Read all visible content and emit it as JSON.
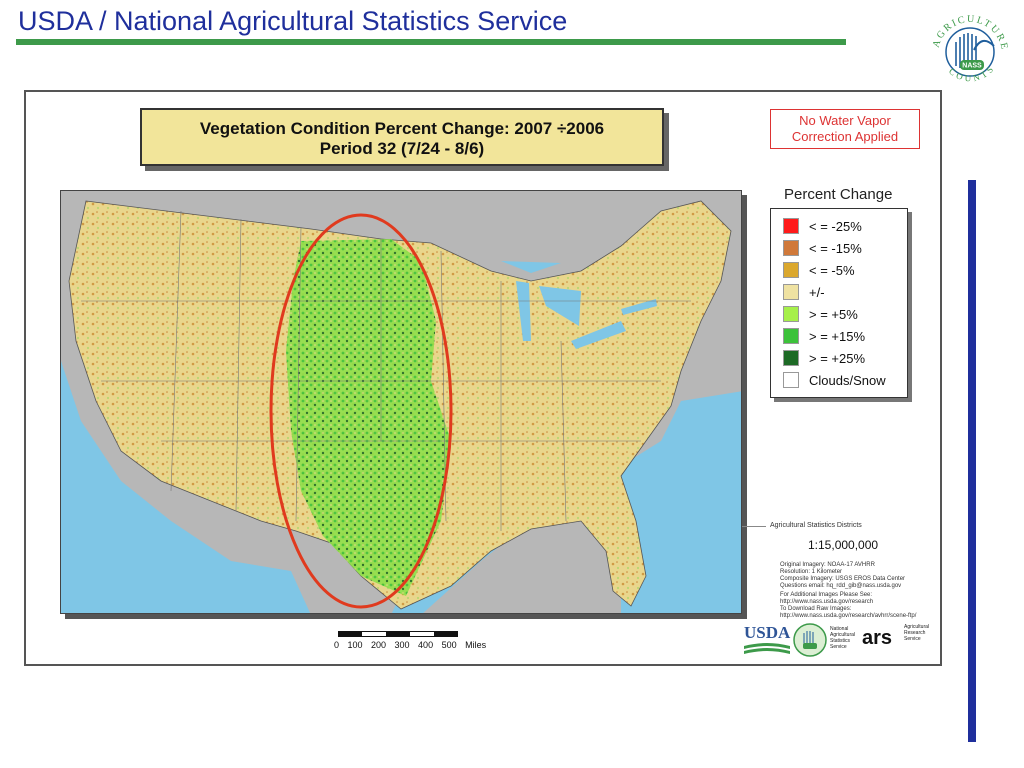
{
  "header": {
    "title": "USDA / National Agricultural Statistics Service"
  },
  "logo": {
    "ring_text": "AGRICULTURE COUNTS",
    "center_text": "NASS"
  },
  "map": {
    "title_line1": "Vegetation Condition Percent Change: 2007 ÷2006",
    "title_line2": "Period 32 (7/24 - 8/6)",
    "note_line1": "No Water Vapor",
    "note_line2": "Correction Applied",
    "highlight": {
      "shape": "ellipse",
      "color": "#e03a1e",
      "region": "Great Plains"
    }
  },
  "legend": {
    "title": "Percent Change",
    "items": [
      {
        "label": "< = -25%",
        "color": "#ff1a1a"
      },
      {
        "label": "< = -15%",
        "color": "#d0793a"
      },
      {
        "label": "< = -5%",
        "color": "#dba82e"
      },
      {
        "label": "+/-",
        "color": "#efe2a2"
      },
      {
        "label": "> = +5%",
        "color": "#a6f04a"
      },
      {
        "label": "> = +15%",
        "color": "#3cc23a"
      },
      {
        "label": "> = +25%",
        "color": "#1d6a25"
      },
      {
        "label": "Clouds/Snow",
        "color": "#ffffff"
      }
    ]
  },
  "info": {
    "districts": "Agricultural Statistics Districts",
    "scale": "1:15,000,000",
    "imagery": [
      "Original Imagery:  NOAA-17 AVHRR",
      "Resolution:  1 Kilometer",
      "Composite Imagery:  USGS EROS Data Center",
      "Questions email:  hq_rdd_gib@nass.usda.gov"
    ],
    "links": [
      "For Additional Images Please See:",
      "http://www.nass.usda.gov/research",
      "To Download Raw Images:",
      "http://www.nass.usda.gov/research/avhrr/scene-ftp/"
    ]
  },
  "scalebar": {
    "labels": "0 100 200 300 400 500 Miles"
  },
  "agencies": {
    "usda": "USDA",
    "nass_lines": [
      "National",
      "Agricultural",
      "Statistics",
      "Service"
    ],
    "ars": "ars",
    "ars_lines": [
      "Agricultural",
      "Research",
      "Service"
    ]
  },
  "colors": {
    "title_blue": "#1f2f9c",
    "rule_green": "#3d9a4a",
    "ocean": "#7fc6e6"
  }
}
